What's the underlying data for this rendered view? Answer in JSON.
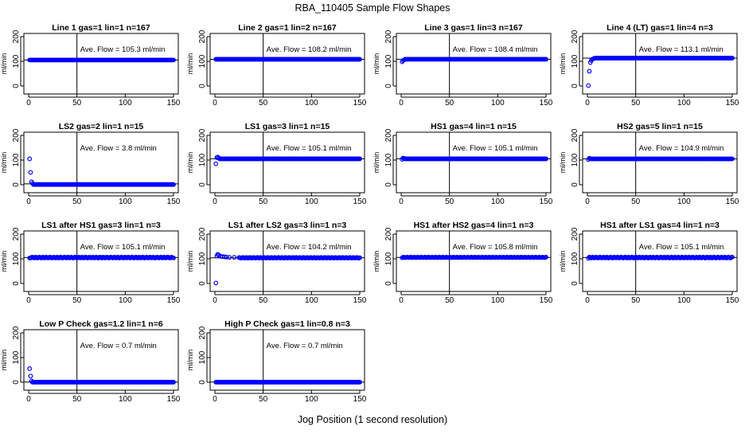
{
  "figure": {
    "title": "RBA_110405  Sample Flow Shapes",
    "xlabel": "Jog Position (1 second resolution)"
  },
  "chart_data": [
    {
      "type": "scatter",
      "title": "Line 1 gas=1 lin=1 n=167",
      "ylabel": "ml/min",
      "xlim": [
        0,
        150
      ],
      "ylim": [
        0,
        200
      ],
      "xticks": [
        0,
        50,
        100,
        150
      ],
      "yticks": [
        0,
        100,
        200
      ],
      "vline": 50,
      "hline": 105.3,
      "annotation": "Ave. Flow =  105.3  ml/min",
      "level": 105.3,
      "start": [],
      "spread": 0,
      "color": "#0000ff"
    },
    {
      "type": "scatter",
      "title": "Line 2 gas=1 lin=2 n=167",
      "ylabel": "ml/min",
      "xlim": [
        0,
        150
      ],
      "ylim": [
        0,
        200
      ],
      "xticks": [
        0,
        50,
        100,
        150
      ],
      "yticks": [
        0,
        100,
        200
      ],
      "vline": 50,
      "hline": 108.2,
      "annotation": "Ave. Flow =  108.2  ml/min",
      "level": 108.2,
      "start": [],
      "spread": 0,
      "color": "#0000ff"
    },
    {
      "type": "scatter",
      "title": "Line 3 gas=1 lin=3 n=167",
      "ylabel": "ml/min",
      "xlim": [
        0,
        150
      ],
      "ylim": [
        0,
        200
      ],
      "xticks": [
        0,
        50,
        100,
        150
      ],
      "yticks": [
        0,
        100,
        200
      ],
      "vline": 50,
      "hline": 108.4,
      "annotation": "Ave. Flow =  108.4  ml/min",
      "level": 108.4,
      "start": [
        [
          1,
          98
        ],
        [
          2,
          103
        ],
        [
          3,
          106
        ]
      ],
      "spread": 0,
      "color": "#0000ff"
    },
    {
      "type": "scatter",
      "title": "Line 4 (LT) gas=1 lin=4 n=3",
      "ylabel": "ml/min",
      "xlim": [
        0,
        150
      ],
      "ylim": [
        0,
        200
      ],
      "xticks": [
        0,
        50,
        100,
        150
      ],
      "yticks": [
        0,
        100,
        200
      ],
      "vline": 50,
      "hline": 113.1,
      "annotation": "Ave. Flow =  113.1  ml/min",
      "level": 113.1,
      "start": [
        [
          1,
          2
        ],
        [
          2,
          60
        ],
        [
          3,
          95
        ],
        [
          4,
          103
        ],
        [
          5,
          108
        ],
        [
          6,
          110
        ],
        [
          7,
          112
        ]
      ],
      "spread": 0,
      "color": "#0000ff"
    },
    {
      "type": "scatter",
      "title": "LS2 gas=2 lin=1 n=15",
      "ylabel": "ml/min",
      "xlim": [
        0,
        150
      ],
      "ylim": [
        0,
        200
      ],
      "xticks": [
        0,
        50,
        100,
        150
      ],
      "yticks": [
        0,
        100,
        200
      ],
      "vline": 50,
      "hline": 3.8,
      "annotation": "Ave. Flow =  3.8  ml/min",
      "level": 1,
      "start": [
        [
          1,
          105
        ],
        [
          2,
          50
        ],
        [
          3,
          12
        ],
        [
          4,
          5
        ]
      ],
      "spread": 0,
      "color": "#0000ff"
    },
    {
      "type": "scatter",
      "title": "LS1 gas=3 lin=1 n=15",
      "ylabel": "ml/min",
      "xlim": [
        0,
        150
      ],
      "ylim": [
        0,
        200
      ],
      "xticks": [
        0,
        50,
        100,
        150
      ],
      "yticks": [
        0,
        100,
        200
      ],
      "vline": 50,
      "hline": 105.1,
      "annotation": "Ave. Flow =  105.1  ml/min",
      "level": 105.1,
      "start": [
        [
          1,
          85
        ],
        [
          2,
          110
        ],
        [
          3,
          112
        ],
        [
          4,
          108
        ]
      ],
      "spread": 0,
      "color": "#0000ff"
    },
    {
      "type": "scatter",
      "title": "HS1 gas=4 lin=1 n=15",
      "ylabel": "ml/min",
      "xlim": [
        0,
        150
      ],
      "ylim": [
        0,
        200
      ],
      "xticks": [
        0,
        50,
        100,
        150
      ],
      "yticks": [
        0,
        100,
        200
      ],
      "vline": 50,
      "hline": 105.1,
      "annotation": "Ave. Flow =  105.1  ml/min",
      "level": 105.1,
      "start": [
        [
          1,
          103
        ],
        [
          2,
          108
        ],
        [
          3,
          107
        ]
      ],
      "spread": 0,
      "color": "#0000ff"
    },
    {
      "type": "scatter",
      "title": "HS2 gas=5 lin=1 n=15",
      "ylabel": "ml/min",
      "xlim": [
        0,
        150
      ],
      "ylim": [
        0,
        200
      ],
      "xticks": [
        0,
        50,
        100,
        150
      ],
      "yticks": [
        0,
        100,
        200
      ],
      "vline": 50,
      "hline": 104.9,
      "annotation": "Ave. Flow =  104.9  ml/min",
      "level": 104.9,
      "start": [
        [
          1,
          102
        ],
        [
          2,
          107
        ],
        [
          3,
          106
        ]
      ],
      "spread": 0,
      "color": "#0000ff"
    },
    {
      "type": "scatter",
      "title": "LS1 after HS1 gas=3 lin=1 n=3",
      "ylabel": "ml/min",
      "xlim": [
        0,
        150
      ],
      "ylim": [
        0,
        200
      ],
      "xticks": [
        0,
        50,
        100,
        150
      ],
      "yticks": [
        0,
        100,
        200
      ],
      "vline": 50,
      "hline": 105.1,
      "annotation": "Ave. Flow =  105.1  ml/min",
      "level": 105.1,
      "start": [
        [
          1,
          103
        ]
      ],
      "spread": 2,
      "color": "#0000ff"
    },
    {
      "type": "scatter",
      "title": "LS1 after LS2 gas=3 lin=1 n=3",
      "ylabel": "ml/min",
      "xlim": [
        0,
        150
      ],
      "ylim": [
        0,
        200
      ],
      "xticks": [
        0,
        50,
        100,
        150
      ],
      "yticks": [
        0,
        100,
        200
      ],
      "vline": 50,
      "hline": 104.2,
      "annotation": "Ave. Flow =  104.2  ml/min",
      "level": 104.2,
      "start": [
        [
          1,
          2
        ],
        [
          2,
          112
        ],
        [
          3,
          118
        ],
        [
          4,
          115
        ],
        [
          6,
          110
        ],
        [
          8,
          109
        ],
        [
          10,
          108
        ],
        [
          12,
          107
        ],
        [
          15,
          106
        ],
        [
          20,
          106
        ],
        [
          25,
          105
        ]
      ],
      "spread": 1.5,
      "color": "#0000ff"
    },
    {
      "type": "scatter",
      "title": "HS1 after HS2 gas=4 lin=1 n=3",
      "ylabel": "ml/min",
      "xlim": [
        0,
        150
      ],
      "ylim": [
        0,
        200
      ],
      "xticks": [
        0,
        50,
        100,
        150
      ],
      "yticks": [
        0,
        100,
        200
      ],
      "vline": 50,
      "hline": 105.8,
      "annotation": "Ave. Flow =  105.8  ml/min",
      "level": 105.8,
      "start": [
        [
          1,
          104
        ]
      ],
      "spread": 1,
      "color": "#0000ff"
    },
    {
      "type": "scatter",
      "title": "HS1 after LS1 gas=4 lin=1 n=3",
      "ylabel": "ml/min",
      "xlim": [
        0,
        150
      ],
      "ylim": [
        0,
        200
      ],
      "xticks": [
        0,
        50,
        100,
        150
      ],
      "yticks": [
        0,
        100,
        200
      ],
      "vline": 50,
      "hline": 105.1,
      "annotation": "Ave. Flow =  105.1  ml/min",
      "level": 105.1,
      "start": [
        [
          1,
          102
        ]
      ],
      "spread": 2,
      "color": "#0000ff"
    },
    {
      "type": "scatter",
      "title": "Low P Check gas=1.2 lin=1 n=6",
      "ylabel": "ml/min",
      "xlim": [
        0,
        150
      ],
      "ylim": [
        0,
        200
      ],
      "xticks": [
        0,
        50,
        100,
        150
      ],
      "yticks": [
        0,
        100,
        200
      ],
      "vline": 50,
      "hline": 0.7,
      "annotation": "Ave. Flow =  0.7  ml/min",
      "level": 0.3,
      "start": [
        [
          1,
          55
        ],
        [
          2,
          25
        ],
        [
          3,
          5
        ]
      ],
      "spread": 0,
      "color": "#0000ff"
    },
    {
      "type": "scatter",
      "title": "High P Check gas=1 lin=0.8 n=3",
      "ylabel": "ml/min",
      "xlim": [
        0,
        150
      ],
      "ylim": [
        0,
        200
      ],
      "xticks": [
        0,
        50,
        100,
        150
      ],
      "yticks": [
        0,
        100,
        200
      ],
      "vline": 50,
      "hline": 0.7,
      "annotation": "Ave. Flow =  0.7  ml/min",
      "level": 0.3,
      "start": [],
      "spread": 0,
      "color": "#0000ff"
    }
  ]
}
